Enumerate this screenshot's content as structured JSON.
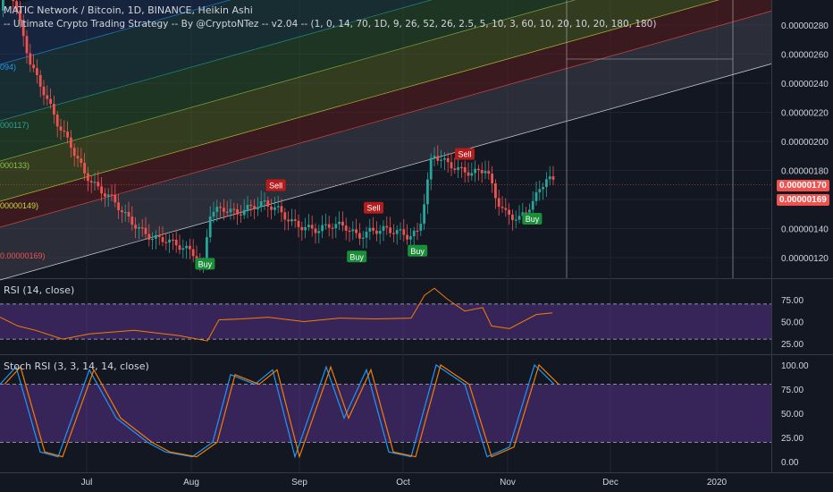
{
  "header": {
    "title": "MATIC Network / Bitcoin, 1D, BINANCE, Heikin Ashi",
    "indicator": "-- Ultimate Crypto Trading Strategy -- By @CryptoNTez -- v2.04 -- (1, 0, 14, 70, 1D, 9, 26, 52, 26, 2.5, 5, 10, 3, 60, 10, 20, 10, 20, 180, 180)"
  },
  "pane_titles": {
    "rsi": "RSI (14, close)",
    "stoch": "Stoch RSI (3, 3, 14, 14, close)"
  },
  "left_labels": [
    "094)",
    "000117)",
    "000133)",
    "00000149)",
    "0.00000169)"
  ],
  "price_tags": {
    "last": "0.00000170",
    "prev": "0.00000169"
  },
  "signals": {
    "buy": "Buy",
    "sell": "Sell"
  },
  "colors": {
    "background": "#131722",
    "up": "#26a69a",
    "down": "#ef5350",
    "rsi_line": "#f57c00",
    "stoch_k": "#2196f3",
    "stoch_d": "#f57c00",
    "band_fill": "#7b3fbf",
    "buy": "#1b8e3a",
    "sell": "#b71c1c"
  },
  "chart_data": [
    {
      "type": "line",
      "title": "MATIC Network / Bitcoin, 1D, BINANCE, Heikin Ashi",
      "x_ticks": [
        "Jul",
        "Aug",
        "Sep",
        "Oct",
        "Nov",
        "Dec",
        "2020"
      ],
      "y_ticks": [
        "0.00000120",
        "0.00000140",
        "0.00000160",
        "0.00000180",
        "0.00000200",
        "0.00000220",
        "0.00000240",
        "0.00000260",
        "0.00000280"
      ],
      "ylim": [
        1.1e-06,
        2.9e-06
      ],
      "price_close_approx": [
        [
          "2019-06-10",
          2.9e-06
        ],
        [
          "2019-06-14",
          2.55e-06
        ],
        [
          "2019-06-18",
          2.35e-06
        ],
        [
          "2019-06-22",
          2.12e-06
        ],
        [
          "2019-06-26",
          1.95e-06
        ],
        [
          "2019-06-30",
          1.75e-06
        ],
        [
          "2019-07-04",
          1.65e-06
        ],
        [
          "2019-07-08",
          1.6e-06
        ],
        [
          "2019-07-12",
          1.5e-06
        ],
        [
          "2019-07-16",
          1.42e-06
        ],
        [
          "2019-07-20",
          1.36e-06
        ],
        [
          "2019-07-24",
          1.34e-06
        ],
        [
          "2019-07-28",
          1.28e-06
        ],
        [
          "2019-08-01",
          1.22e-06
        ],
        [
          "2019-08-04",
          1.1e-06
        ],
        [
          "2019-08-06",
          1.48e-06
        ],
        [
          "2019-08-10",
          1.52e-06
        ],
        [
          "2019-08-14",
          1.5e-06
        ],
        [
          "2019-08-18",
          1.56e-06
        ],
        [
          "2019-08-22",
          1.6e-06
        ],
        [
          "2019-08-26",
          1.56e-06
        ],
        [
          "2019-08-30",
          1.46e-06
        ],
        [
          "2019-09-03",
          1.4e-06
        ],
        [
          "2019-09-07",
          1.37e-06
        ],
        [
          "2019-09-11",
          1.4e-06
        ],
        [
          "2019-09-15",
          1.4e-06
        ],
        [
          "2019-09-19",
          1.34e-06
        ],
        [
          "2019-09-23",
          1.4e-06
        ],
        [
          "2019-09-27",
          1.42e-06
        ],
        [
          "2019-10-01",
          1.4e-06
        ],
        [
          "2019-10-04",
          1.36e-06
        ],
        [
          "2019-10-07",
          1.38e-06
        ],
        [
          "2019-10-08",
          1.5e-06
        ],
        [
          "2019-10-11",
          1.9e-06
        ],
        [
          "2019-10-15",
          1.83e-06
        ],
        [
          "2019-10-19",
          1.78e-06
        ],
        [
          "2019-10-23",
          1.77e-06
        ],
        [
          "2019-10-27",
          1.82e-06
        ],
        [
          "2019-10-30",
          1.62e-06
        ],
        [
          "2019-11-02",
          1.52e-06
        ],
        [
          "2019-11-06",
          1.49e-06
        ],
        [
          "2019-11-10",
          1.6e-06
        ],
        [
          "2019-11-14",
          1.75e-06
        ],
        [
          "2019-11-16",
          1.7e-06
        ]
      ],
      "signals": [
        {
          "type": "Sell",
          "date": "2019-08-26"
        },
        {
          "type": "Buy",
          "date": "2019-08-05"
        },
        {
          "type": "Buy",
          "date": "2019-09-19"
        },
        {
          "type": "Sell",
          "date": "2019-09-24"
        },
        {
          "type": "Buy",
          "date": "2019-10-07"
        },
        {
          "type": "Sell",
          "date": "2019-10-21"
        },
        {
          "type": "Buy",
          "date": "2019-11-10"
        }
      ],
      "last_price": 1.7e-06
    },
    {
      "type": "line",
      "title": "RSI (14, close)",
      "y_ticks": [
        "25.00",
        "50.00",
        "75.00"
      ],
      "ylim": [
        20,
        95
      ],
      "bands": [
        30,
        70
      ],
      "values_approx": [
        [
          0,
          55
        ],
        [
          20,
          45
        ],
        [
          40,
          40
        ],
        [
          70,
          30
        ],
        [
          100,
          36
        ],
        [
          150,
          40
        ],
        [
          200,
          34
        ],
        [
          232,
          28
        ],
        [
          245,
          52
        ],
        [
          270,
          53
        ],
        [
          300,
          55
        ],
        [
          340,
          50
        ],
        [
          380,
          54
        ],
        [
          420,
          53
        ],
        [
          460,
          54
        ],
        [
          475,
          80
        ],
        [
          486,
          88
        ],
        [
          500,
          76
        ],
        [
          520,
          62
        ],
        [
          540,
          66
        ],
        [
          550,
          45
        ],
        [
          570,
          42
        ],
        [
          600,
          58
        ],
        [
          618,
          60
        ]
      ]
    },
    {
      "type": "line",
      "title": "Stoch RSI (3, 3, 14, 14, close)",
      "y_ticks": [
        "0.00",
        "25.00",
        "50.00",
        "75.00",
        "100.00"
      ],
      "ylim": [
        -5,
        105
      ],
      "bands": [
        20,
        80
      ],
      "series": [
        {
          "values_approx": [
            [
              0,
              80
            ],
            [
              18,
              98
            ],
            [
              45,
              10
            ],
            [
              65,
              5
            ],
            [
              100,
              95
            ],
            [
              130,
              45
            ],
            [
              165,
              20
            ],
            [
              185,
              10
            ],
            [
              215,
              5
            ],
            [
              238,
              20
            ],
            [
              258,
              90
            ],
            [
              285,
              80
            ],
            [
              305,
              95
            ],
            [
              330,
              5
            ],
            [
              365,
              98
            ],
            [
              385,
              45
            ],
            [
              410,
              95
            ],
            [
              435,
              10
            ],
            [
              460,
              5
            ],
            [
              488,
              100
            ],
            [
              520,
              80
            ],
            [
              545,
              5
            ],
            [
              570,
              15
            ],
            [
              598,
              100
            ],
            [
              620,
              80
            ]
          ]
        }
      ]
    }
  ]
}
